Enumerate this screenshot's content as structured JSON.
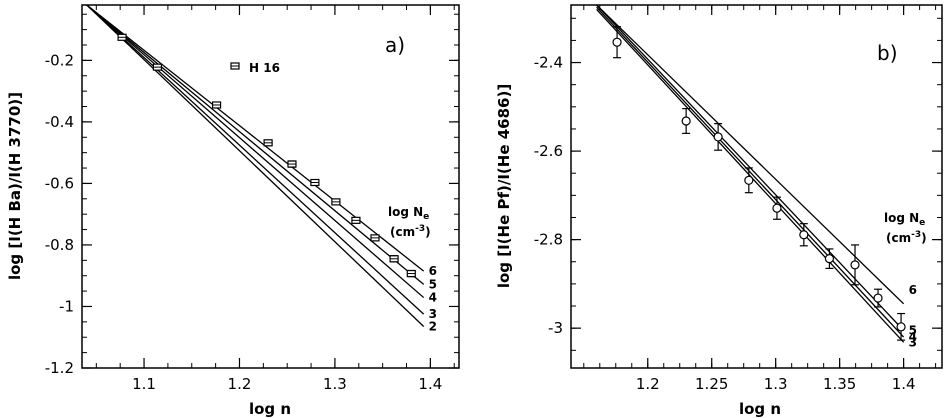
{
  "chart_data": [
    {
      "panel": "a)",
      "type": "scatter",
      "xlabel": "log n",
      "ylabel": "log [I(H Ba)/I(H 3770)]",
      "xlim": [
        1.035,
        1.43
      ],
      "ylim": [
        -1.2,
        -0.02
      ],
      "xticks": [
        "1.1",
        "1.2",
        "1.3",
        "1.4"
      ],
      "yticks": [
        "-0.2",
        "-0.4",
        "-0.6",
        "-0.8",
        "-1",
        "-1.2"
      ],
      "points": [
        {
          "x": 1.077,
          "y": -0.125,
          "err": 0.008
        },
        {
          "x": 1.114,
          "y": -0.222,
          "err": 0.006
        },
        {
          "x": 1.176,
          "y": -0.345,
          "err": 0.008
        },
        {
          "x": 1.23,
          "y": -0.468,
          "err": 0.009
        },
        {
          "x": 1.255,
          "y": -0.537,
          "err": 0.01
        },
        {
          "x": 1.279,
          "y": -0.597,
          "err": 0.009
        },
        {
          "x": 1.301,
          "y": -0.66,
          "err": 0.008
        },
        {
          "x": 1.322,
          "y": -0.72,
          "err": 0.008
        },
        {
          "x": 1.342,
          "y": -0.777,
          "err": 0.008
        },
        {
          "x": 1.362,
          "y": -0.845,
          "err": 0.01
        },
        {
          "x": 1.38,
          "y": -0.893,
          "err": 0.01
        }
      ],
      "model_lines": [
        {
          "label": "6",
          "x": [
            1.04,
            1.393
          ],
          "y": [
            -0.01,
            -0.885
          ]
        },
        {
          "label": "5",
          "x": [
            1.04,
            1.393
          ],
          "y": [
            -0.01,
            -0.928
          ]
        },
        {
          "label": "4",
          "x": [
            1.04,
            1.393
          ],
          "y": [
            -0.01,
            -0.971
          ]
        },
        {
          "label": "3",
          "x": [
            1.04,
            1.393
          ],
          "y": [
            -0.01,
            -1.025
          ]
        },
        {
          "label": "2",
          "x": [
            1.04,
            1.393
          ],
          "y": [
            -0.01,
            -1.065
          ]
        }
      ],
      "legend": {
        "symbol_label": "H 16",
        "title_1": "log N",
        "title_sub": "e",
        "title_2": "(cm",
        "title_sup": "-3",
        "title_3": ")"
      }
    },
    {
      "panel": "b)",
      "type": "scatter",
      "xlabel": "log n",
      "ylabel": "log [I(He Pf)/I(He 4686)]",
      "xlim": [
        1.14,
        1.43
      ],
      "ylim": [
        -3.09,
        -2.27
      ],
      "xticks": [
        "1.2",
        "1.25",
        "1.3",
        "1.35",
        "1.4"
      ],
      "yticks": [
        "-2.4",
        "-2.6",
        "-2.8",
        "-3"
      ],
      "points": [
        {
          "x": 1.176,
          "y": -2.354,
          "err": 0.035
        },
        {
          "x": 1.23,
          "y": -2.532,
          "err": 0.028
        },
        {
          "x": 1.255,
          "y": -2.568,
          "err": 0.03
        },
        {
          "x": 1.279,
          "y": -2.666,
          "err": 0.028
        },
        {
          "x": 1.301,
          "y": -2.729,
          "err": 0.025
        },
        {
          "x": 1.322,
          "y": -2.789,
          "err": 0.025
        },
        {
          "x": 1.342,
          "y": -2.843,
          "err": 0.022
        },
        {
          "x": 1.362,
          "y": -2.857,
          "err": 0.045
        },
        {
          "x": 1.38,
          "y": -2.932,
          "err": 0.02
        },
        {
          "x": 1.398,
          "y": -2.997,
          "err": 0.03
        }
      ],
      "model_lines": [
        {
          "label": "6",
          "x": [
            1.16,
            1.4
          ],
          "y": [
            -2.255,
            -2.945
          ]
        },
        {
          "label": "5",
          "x": [
            1.16,
            1.4
          ],
          "y": [
            -2.27,
            -3.005
          ]
        },
        {
          "label": "4",
          "x": [
            1.16,
            1.4
          ],
          "y": [
            -2.275,
            -3.02
          ]
        },
        {
          "label": "3",
          "x": [
            1.16,
            1.4
          ],
          "y": [
            -2.28,
            -3.032
          ]
        }
      ],
      "legend": {
        "title_1": "log N",
        "title_sub": "e",
        "title_2": "(cm",
        "title_sup": "-3",
        "title_3": ")"
      }
    }
  ]
}
